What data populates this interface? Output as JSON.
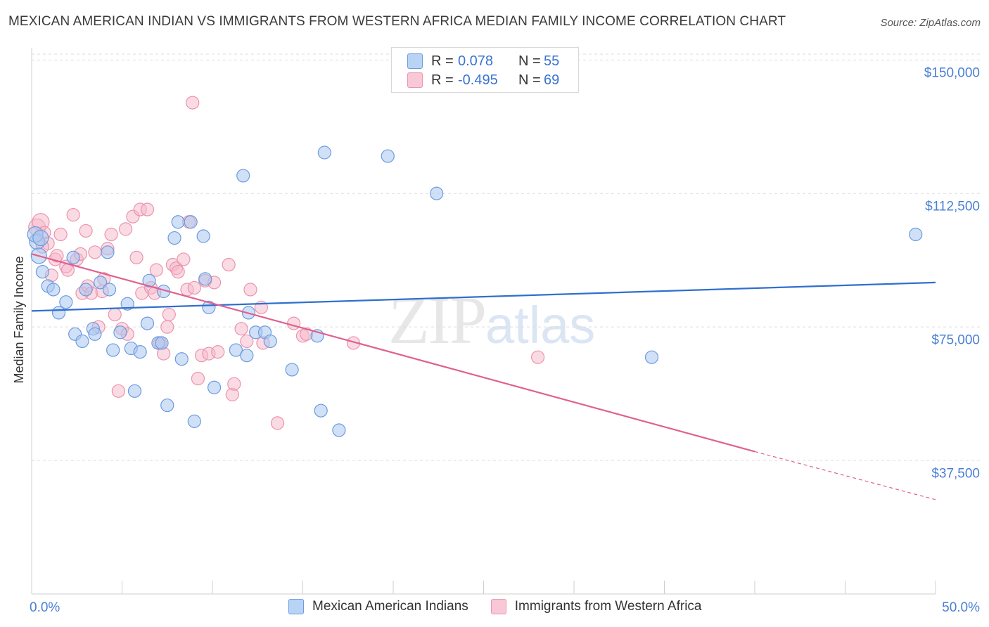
{
  "header": {
    "title": "MEXICAN AMERICAN INDIAN VS IMMIGRANTS FROM WESTERN AFRICA MEDIAN FAMILY INCOME CORRELATION CHART",
    "source": "Source: ZipAtlas.com"
  },
  "watermark": {
    "zip": "ZIP",
    "atlas": "atlas"
  },
  "legend_top": {
    "rows": [
      {
        "r_label": "R =",
        "r_value": "0.078",
        "n_label": "N =",
        "n_value": "55"
      },
      {
        "r_label": "R =",
        "r_value": "-0.495",
        "n_label": "N =",
        "n_value": "69"
      }
    ]
  },
  "legend_bottom": {
    "items": [
      "Mexican American Indians",
      "Immigrants from Western Africa"
    ]
  },
  "colors": {
    "blue_fill": "#a9c6ef",
    "blue_stroke": "#6b9be0",
    "blue_line": "#2f6fcf",
    "pink_fill": "#f6b8ca",
    "pink_stroke": "#ec93ad",
    "pink_line": "#e0608f",
    "grid": "#dddddd",
    "tick_label": "#4a7fd4"
  },
  "chart_data": {
    "type": "scatter",
    "title": "MEXICAN AMERICAN INDIAN VS IMMIGRANTS FROM WESTERN AFRICA MEDIAN FAMILY INCOME CORRELATION CHART",
    "xlabel": "",
    "ylabel": "Median Family Income",
    "xlim": [
      0,
      50
    ],
    "ylim": [
      0,
      155000
    ],
    "x_tick_labels": [
      "0.0%",
      "50.0%"
    ],
    "y_ticks": [
      37500,
      75000,
      112500,
      150000
    ],
    "y_tick_labels": [
      "$37,500",
      "$75,000",
      "$112,500",
      "$150,000"
    ],
    "grid": "horizontal dashed",
    "legend_position": "top-center",
    "series": [
      {
        "name": "Mexican American Indians",
        "trend": {
          "x": [
            0,
            50
          ],
          "y": [
            79500,
            87500
          ]
        },
        "points": [
          [
            0.3,
            99000
          ],
          [
            0.4,
            95000
          ],
          [
            0.6,
            90500
          ],
          [
            0.9,
            86500
          ],
          [
            1.2,
            85500
          ],
          [
            1.5,
            79000
          ],
          [
            1.9,
            82000
          ],
          [
            2.3,
            94500
          ],
          [
            2.4,
            73000
          ],
          [
            2.8,
            71000
          ],
          [
            3.0,
            85500
          ],
          [
            3.4,
            74500
          ],
          [
            3.5,
            73000
          ],
          [
            3.8,
            87500
          ],
          [
            4.2,
            96000
          ],
          [
            4.3,
            85500
          ],
          [
            4.5,
            68500
          ],
          [
            4.9,
            73500
          ],
          [
            5.3,
            81500
          ],
          [
            5.5,
            69000
          ],
          [
            5.7,
            57000
          ],
          [
            6.0,
            68000
          ],
          [
            6.4,
            76000
          ],
          [
            6.5,
            88000
          ],
          [
            7.0,
            70500
          ],
          [
            7.2,
            70500
          ],
          [
            7.3,
            85000
          ],
          [
            7.5,
            53000
          ],
          [
            7.9,
            100000
          ],
          [
            8.1,
            104500
          ],
          [
            8.3,
            66000
          ],
          [
            8.8,
            104500
          ],
          [
            9.0,
            48500
          ],
          [
            9.5,
            100500
          ],
          [
            9.6,
            88500
          ],
          [
            9.8,
            80500
          ],
          [
            10.1,
            58000
          ],
          [
            11.3,
            68500
          ],
          [
            11.7,
            117500
          ],
          [
            11.9,
            67000
          ],
          [
            12.0,
            79000
          ],
          [
            12.4,
            73500
          ],
          [
            12.9,
            73500
          ],
          [
            13.2,
            71000
          ],
          [
            14.4,
            63000
          ],
          [
            15.8,
            72500
          ],
          [
            16.0,
            51500
          ],
          [
            16.2,
            124000
          ],
          [
            17.0,
            46000
          ],
          [
            19.7,
            123000
          ],
          [
            22.4,
            112500
          ],
          [
            34.3,
            66500
          ],
          [
            48.9,
            101000
          ],
          [
            0.2,
            101000
          ],
          [
            0.5,
            100000
          ]
        ]
      },
      {
        "name": "Immigrants from Western Africa",
        "trend": {
          "x": [
            0,
            40
          ],
          "y": [
            95500,
            40000
          ]
        },
        "trend_dashed": {
          "x": [
            40,
            50
          ],
          "y": [
            40000,
            26500
          ]
        },
        "points": [
          [
            0.3,
            103000
          ],
          [
            0.5,
            104500
          ],
          [
            0.7,
            101500
          ],
          [
            0.9,
            98500
          ],
          [
            1.1,
            89500
          ],
          [
            1.3,
            94000
          ],
          [
            1.4,
            95000
          ],
          [
            1.6,
            101000
          ],
          [
            1.9,
            92000
          ],
          [
            2.0,
            91000
          ],
          [
            2.3,
            106500
          ],
          [
            2.5,
            94000
          ],
          [
            2.7,
            95500
          ],
          [
            2.8,
            84500
          ],
          [
            3.0,
            102000
          ],
          [
            3.1,
            86500
          ],
          [
            3.3,
            84500
          ],
          [
            3.5,
            96000
          ],
          [
            3.7,
            75000
          ],
          [
            3.9,
            85000
          ],
          [
            4.0,
            88500
          ],
          [
            4.2,
            97000
          ],
          [
            4.4,
            101000
          ],
          [
            4.6,
            78500
          ],
          [
            4.8,
            57000
          ],
          [
            5.0,
            74500
          ],
          [
            5.2,
            102500
          ],
          [
            5.3,
            73000
          ],
          [
            5.6,
            106000
          ],
          [
            5.8,
            94500
          ],
          [
            6.0,
            108000
          ],
          [
            6.1,
            84500
          ],
          [
            6.4,
            108000
          ],
          [
            6.6,
            86000
          ],
          [
            6.8,
            84500
          ],
          [
            6.9,
            91000
          ],
          [
            7.1,
            70500
          ],
          [
            7.3,
            67500
          ],
          [
            7.5,
            75000
          ],
          [
            7.6,
            78500
          ],
          [
            7.8,
            92500
          ],
          [
            8.0,
            91500
          ],
          [
            8.1,
            90500
          ],
          [
            8.4,
            94000
          ],
          [
            8.6,
            85500
          ],
          [
            8.7,
            104500
          ],
          [
            8.9,
            138000
          ],
          [
            9.0,
            86000
          ],
          [
            9.2,
            60500
          ],
          [
            9.4,
            67000
          ],
          [
            9.6,
            88000
          ],
          [
            9.8,
            67500
          ],
          [
            10.1,
            87500
          ],
          [
            10.3,
            68000
          ],
          [
            10.9,
            92500
          ],
          [
            11.1,
            56000
          ],
          [
            11.2,
            59000
          ],
          [
            11.6,
            74500
          ],
          [
            11.9,
            71000
          ],
          [
            12.1,
            85500
          ],
          [
            12.7,
            80500
          ],
          [
            12.8,
            70500
          ],
          [
            13.6,
            48000
          ],
          [
            14.5,
            76000
          ],
          [
            15.0,
            72500
          ],
          [
            15.2,
            73000
          ],
          [
            17.8,
            70500
          ],
          [
            28.0,
            66500
          ],
          [
            0.6,
            97500
          ]
        ]
      }
    ]
  }
}
